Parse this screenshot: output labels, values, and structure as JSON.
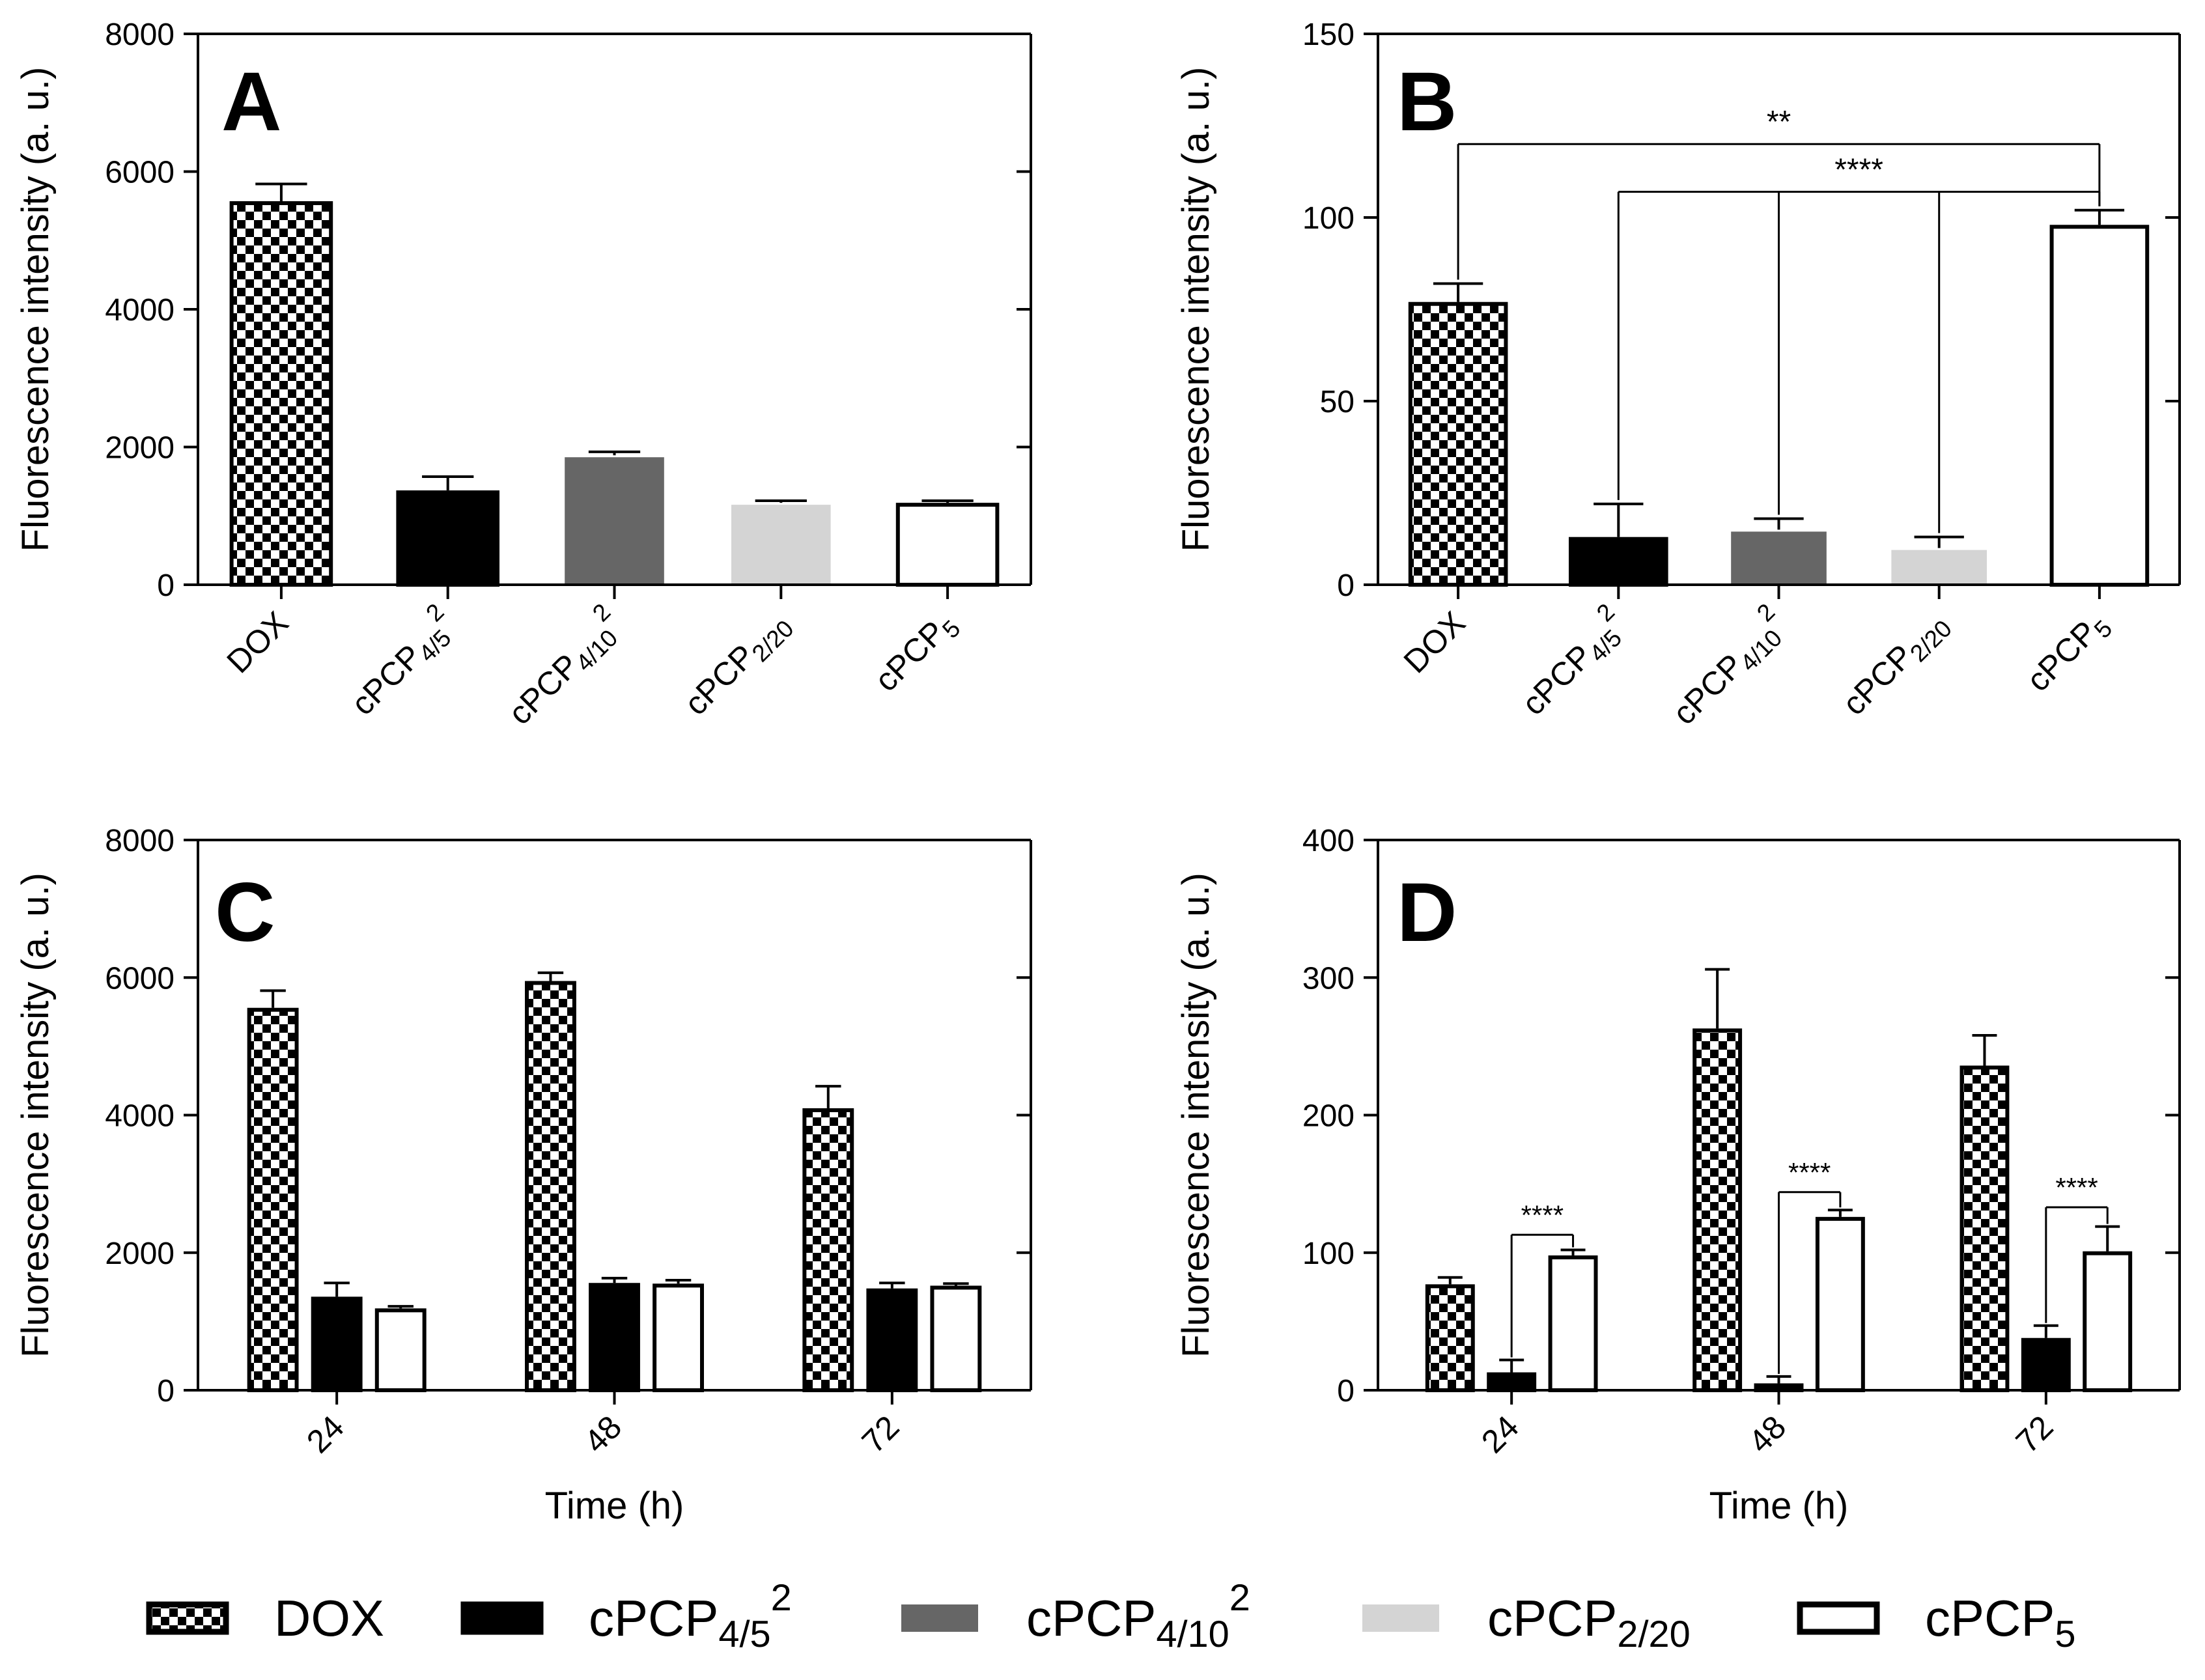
{
  "colors": {
    "black": "#000000",
    "dark_gray": "#666666",
    "light_gray": "#d4d4d4",
    "white": "#ffffff"
  },
  "series_styles": {
    "DOX": "checker",
    "cPCP4/5 2": "black",
    "cPCP4/10 2": "dark_gray",
    "cPCP2/20": "light_gray",
    "cPCP5": "white"
  },
  "legend": {
    "placement": "bottom",
    "items": [
      {
        "key": "DOX",
        "base": "DOX",
        "sub": "",
        "sup": ""
      },
      {
        "key": "cPCP4/5 2",
        "base": "cPCP",
        "sub": "4/5",
        "sup": "2"
      },
      {
        "key": "cPCP4/10 2",
        "base": "cPCP",
        "sub": "4/10",
        "sup": "2"
      },
      {
        "key": "cPCP2/20",
        "base": "cPCP",
        "sub": "2/20",
        "sup": ""
      },
      {
        "key": "cPCP5",
        "base": "cPCP",
        "sub": "5",
        "sup": ""
      }
    ]
  },
  "chart_data": [
    {
      "panel": "A",
      "type": "bar",
      "ylabel": "Fluorescence intensity (a. u.)",
      "ylim": [
        0,
        8000
      ],
      "yticks": [
        0,
        2000,
        4000,
        6000,
        8000
      ],
      "categories": [
        {
          "key": "DOX",
          "base": "DOX",
          "sub": "",
          "sup": ""
        },
        {
          "key": "cPCP4/5 2",
          "base": "cPCP",
          "sub": "4/5",
          "sup": "2"
        },
        {
          "key": "cPCP4/10 2",
          "base": "cPCP",
          "sub": "4/10",
          "sup": "2"
        },
        {
          "key": "cPCP2/20",
          "base": "cPCP",
          "sub": "2/20",
          "sup": ""
        },
        {
          "key": "cPCP5",
          "base": "cPCP",
          "sub": "5",
          "sup": ""
        }
      ],
      "values": [
        5570,
        1370,
        1880,
        1190,
        1190
      ],
      "errors": [
        250,
        200,
        50,
        30,
        30
      ],
      "significance": []
    },
    {
      "panel": "B",
      "type": "bar",
      "ylabel": "Fluorescence intensity (a. u.)",
      "ylim": [
        0,
        150
      ],
      "yticks": [
        0,
        50,
        100,
        150
      ],
      "categories": [
        {
          "key": "DOX",
          "base": "DOX",
          "sub": "",
          "sup": ""
        },
        {
          "key": "cPCP4/5 2",
          "base": "cPCP",
          "sub": "4/5",
          "sup": "2"
        },
        {
          "key": "cPCP4/10 2",
          "base": "cPCP",
          "sub": "4/10",
          "sup": "2"
        },
        {
          "key": "cPCP2/20",
          "base": "cPCP",
          "sub": "2/20",
          "sup": ""
        },
        {
          "key": "cPCP5",
          "base": "cPCP",
          "sub": "5",
          "sup": ""
        }
      ],
      "values": [
        77,
        13,
        15,
        10,
        98
      ],
      "errors": [
        5,
        9,
        3,
        3,
        4
      ],
      "significance": [
        {
          "from": [
            0
          ],
          "to": 4,
          "level": 120,
          "label": "**"
        },
        {
          "from": [
            1,
            2,
            3
          ],
          "to": 4,
          "level": 107,
          "label": "****"
        }
      ]
    },
    {
      "panel": "C",
      "type": "bar",
      "xlabel": "Time (h)",
      "ylabel": "Fluorescence intensity (a. u.)",
      "ylim": [
        0,
        8000
      ],
      "yticks": [
        0,
        2000,
        4000,
        6000,
        8000
      ],
      "categories": [
        "24",
        "48",
        "72"
      ],
      "series": [
        {
          "key": "DOX",
          "values": [
            5560,
            5950,
            4100
          ],
          "errors": [
            250,
            120,
            320
          ]
        },
        {
          "key": "cPCP4/5 2",
          "values": [
            1360,
            1560,
            1480
          ],
          "errors": [
            200,
            70,
            80
          ]
        },
        {
          "key": "cPCP5",
          "values": [
            1190,
            1550,
            1520
          ],
          "errors": [
            30,
            50,
            30
          ]
        }
      ],
      "significance": []
    },
    {
      "panel": "D",
      "type": "bar",
      "xlabel": "Time (h)",
      "ylabel": "Fluorescence intensity (a. u.)",
      "ylim": [
        0,
        400
      ],
      "yticks": [
        0,
        100,
        200,
        300,
        400
      ],
      "categories": [
        "24",
        "48",
        "72"
      ],
      "series": [
        {
          "key": "DOX",
          "values": [
            77,
            263,
            236
          ],
          "errors": [
            5,
            43,
            22
          ]
        },
        {
          "key": "cPCP4/5 2",
          "values": [
            13,
            5,
            38
          ],
          "errors": [
            9,
            5,
            9
          ]
        },
        {
          "key": "cPCP5",
          "values": [
            98,
            126,
            101
          ],
          "errors": [
            4,
            5,
            18
          ]
        }
      ],
      "significance": [
        {
          "group": 0,
          "from": 1,
          "to": 2,
          "level": 113,
          "label": "****"
        },
        {
          "group": 1,
          "from": 1,
          "to": 2,
          "level": 144,
          "label": "****"
        },
        {
          "group": 2,
          "from": 1,
          "to": 2,
          "level": 133,
          "label": "****"
        }
      ]
    }
  ]
}
